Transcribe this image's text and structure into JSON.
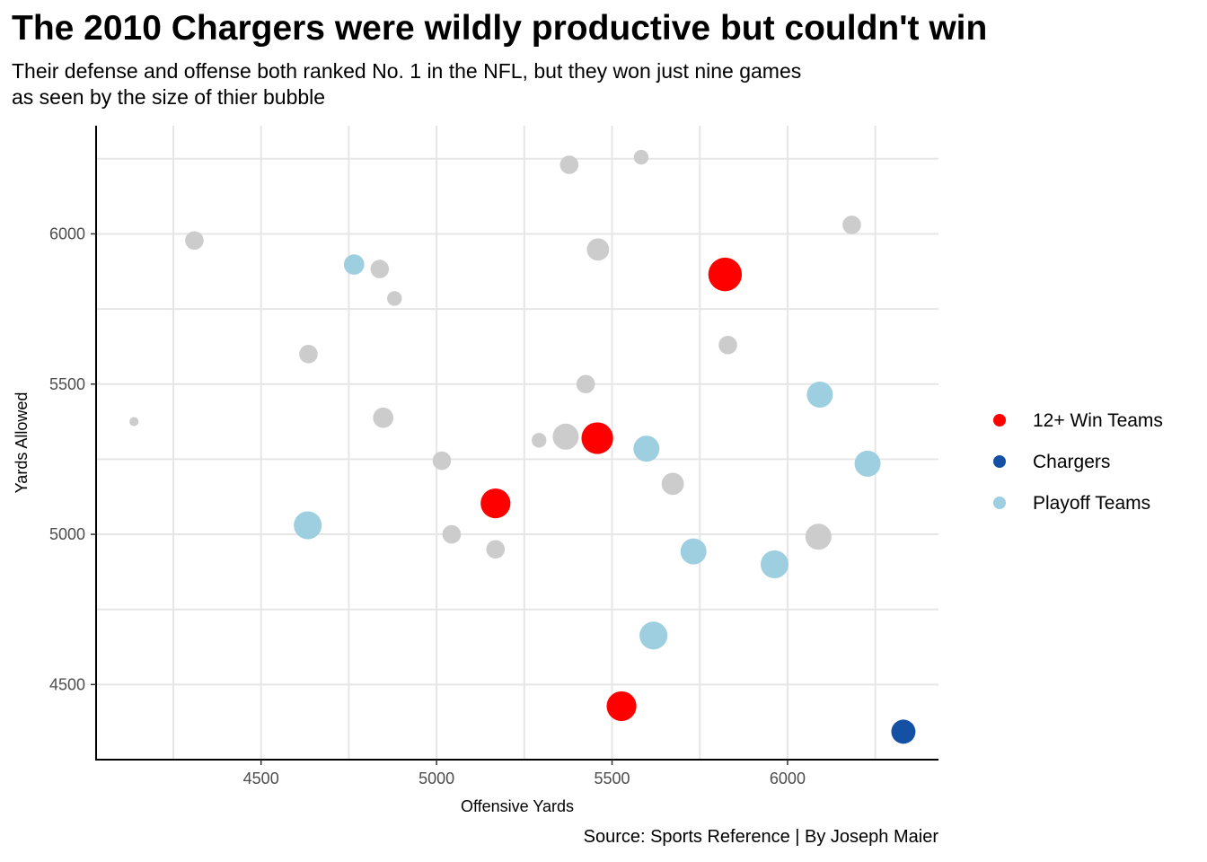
{
  "chart_data": {
    "type": "scatter",
    "title": "The 2010 Chargers were wildly productive but couldn't win",
    "subtitle_lines": [
      "Their defense and offense both ranked No. 1 in the NFL, but they won just nine games",
      "as seen by the size of thier bubble"
    ],
    "caption": "Source: Sports Reference | By Joseph Maier",
    "xlabel": "Offensive Yards",
    "ylabel": "Yards Allowed",
    "xlim": [
      4030,
      6430
    ],
    "ylim": [
      4250,
      6360
    ],
    "x_ticks": [
      4500,
      5000,
      5500,
      6000
    ],
    "y_ticks": [
      4500,
      5000,
      5500,
      6000
    ],
    "grid": true,
    "legend_position": "right",
    "size_encodes": "wins",
    "colors": {
      "other": "#cccccc",
      "twelve_plus": "#ff0000",
      "chargers": "#1450a3",
      "playoff": "#9ecfe0"
    },
    "legend": [
      {
        "key": "twelve_plus",
        "label": "12+ Win Teams"
      },
      {
        "key": "chargers",
        "label": "Chargers"
      },
      {
        "key": "playoff",
        "label": "Playoff Teams"
      }
    ],
    "points": [
      {
        "x": 4138,
        "y": 5375,
        "wins": 1,
        "group": "other"
      },
      {
        "x": 4310,
        "y": 5978,
        "wins": 6,
        "group": "other"
      },
      {
        "x": 4635,
        "y": 5600,
        "wins": 6,
        "group": "other"
      },
      {
        "x": 4633,
        "y": 5030,
        "wins": 11,
        "group": "playoff"
      },
      {
        "x": 4765,
        "y": 5898,
        "wins": 7,
        "group": "playoff"
      },
      {
        "x": 4838,
        "y": 5883,
        "wins": 6,
        "group": "other"
      },
      {
        "x": 4880,
        "y": 5785,
        "wins": 4,
        "group": "other"
      },
      {
        "x": 4848,
        "y": 5388,
        "wins": 7,
        "group": "other"
      },
      {
        "x": 5015,
        "y": 5245,
        "wins": 6,
        "group": "other"
      },
      {
        "x": 5043,
        "y": 5000,
        "wins": 6,
        "group": "other"
      },
      {
        "x": 5168,
        "y": 4950,
        "wins": 6,
        "group": "other"
      },
      {
        "x": 5168,
        "y": 5103,
        "wins": 12,
        "group": "twelve_plus"
      },
      {
        "x": 5292,
        "y": 5313,
        "wins": 4,
        "group": "other"
      },
      {
        "x": 5368,
        "y": 5325,
        "wins": 10,
        "group": "other"
      },
      {
        "x": 5378,
        "y": 6230,
        "wins": 6,
        "group": "other"
      },
      {
        "x": 5425,
        "y": 5500,
        "wins": 6,
        "group": "other"
      },
      {
        "x": 5460,
        "y": 5948,
        "wins": 8,
        "group": "other"
      },
      {
        "x": 5458,
        "y": 5320,
        "wins": 13,
        "group": "twelve_plus"
      },
      {
        "x": 5527,
        "y": 4428,
        "wins": 12,
        "group": "twelve_plus"
      },
      {
        "x": 5583,
        "y": 6255,
        "wins": 4,
        "group": "other"
      },
      {
        "x": 5598,
        "y": 5285,
        "wins": 10,
        "group": "playoff"
      },
      {
        "x": 5618,
        "y": 4663,
        "wins": 11,
        "group": "playoff"
      },
      {
        "x": 5673,
        "y": 5168,
        "wins": 8,
        "group": "other"
      },
      {
        "x": 5732,
        "y": 4943,
        "wins": 10,
        "group": "playoff"
      },
      {
        "x": 5822,
        "y": 5865,
        "wins": 14,
        "group": "twelve_plus"
      },
      {
        "x": 5830,
        "y": 5630,
        "wins": 6,
        "group": "other"
      },
      {
        "x": 5963,
        "y": 4900,
        "wins": 11,
        "group": "playoff"
      },
      {
        "x": 6088,
        "y": 4992,
        "wins": 10,
        "group": "other"
      },
      {
        "x": 6092,
        "y": 5465,
        "wins": 10,
        "group": "playoff"
      },
      {
        "x": 6183,
        "y": 6030,
        "wins": 6,
        "group": "other"
      },
      {
        "x": 6228,
        "y": 5235,
        "wins": 10,
        "group": "playoff"
      },
      {
        "x": 6330,
        "y": 4343,
        "wins": 9,
        "group": "chargers"
      }
    ]
  }
}
